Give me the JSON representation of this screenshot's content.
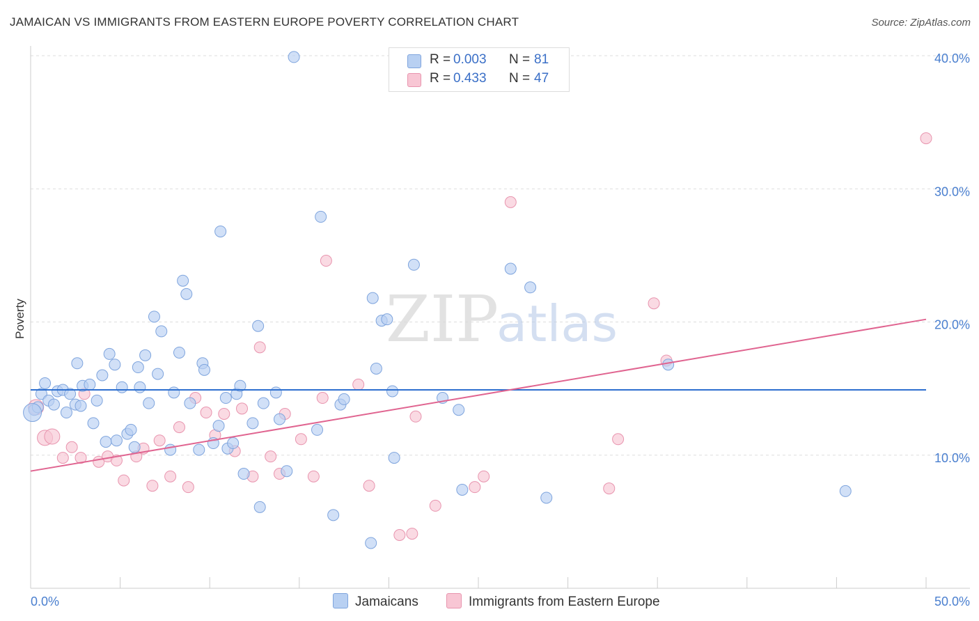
{
  "title": "JAMAICAN VS IMMIGRANTS FROM EASTERN EUROPE POVERTY CORRELATION CHART",
  "source": "Source: ZipAtlas.com",
  "watermark": {
    "zip": "ZIP",
    "atlas": "atlas"
  },
  "colors": {
    "blue_fill": "#b8d0f2",
    "blue_stroke": "#7ea4dd",
    "blue_line": "#2d6fcf",
    "pink_fill": "#f8c6d4",
    "pink_stroke": "#e894ae",
    "pink_line": "#e06490",
    "tick_blue": "#4a7fcf",
    "grid": "#dddddd"
  },
  "legend": {
    "rows": [
      {
        "r_label": "R =",
        "r_value": "0.003",
        "n_label": "N =",
        "n_value": "81"
      },
      {
        "r_label": "R =",
        "r_value": "0.433",
        "n_label": "N =",
        "n_value": "47"
      }
    ]
  },
  "bottom_legend": [
    "Jamaicans",
    "Immigrants from Eastern Europe"
  ],
  "chart_data": {
    "type": "scatter",
    "title": "JAMAICAN VS IMMIGRANTS FROM EASTERN EUROPE POVERTY CORRELATION CHART",
    "ylabel": "Poverty",
    "xlim": [
      0,
      50
    ],
    "ylim": [
      0,
      40
    ],
    "x_tick_labels": [
      "0.0%",
      "50.0%"
    ],
    "y_ticks": [
      10,
      20,
      30,
      40
    ],
    "y_tick_labels": [
      "10.0%",
      "20.0%",
      "30.0%",
      "40.0%"
    ],
    "grid": true,
    "series": [
      {
        "name": "Jamaicans",
        "trend": [
          [
            0,
            14.9
          ],
          [
            50,
            14.9
          ]
        ],
        "points": [
          [
            0.2,
            13.4
          ],
          [
            0.4,
            13.6
          ],
          [
            0.6,
            14.6
          ],
          [
            0.8,
            15.4
          ],
          [
            1.0,
            14.1
          ],
          [
            1.3,
            13.8
          ],
          [
            1.5,
            14.8
          ],
          [
            1.8,
            14.9
          ],
          [
            2.0,
            13.2
          ],
          [
            2.2,
            14.6
          ],
          [
            2.5,
            13.8
          ],
          [
            2.6,
            16.9
          ],
          [
            2.8,
            13.7
          ],
          [
            2.9,
            15.2
          ],
          [
            3.3,
            15.3
          ],
          [
            3.5,
            12.4
          ],
          [
            3.7,
            14.1
          ],
          [
            4.0,
            16.0
          ],
          [
            4.2,
            11.0
          ],
          [
            4.4,
            17.6
          ],
          [
            4.7,
            16.8
          ],
          [
            4.8,
            11.1
          ],
          [
            5.1,
            15.1
          ],
          [
            5.4,
            11.6
          ],
          [
            5.6,
            11.9
          ],
          [
            5.8,
            10.6
          ],
          [
            6.0,
            16.6
          ],
          [
            6.1,
            15.1
          ],
          [
            6.4,
            17.5
          ],
          [
            6.6,
            13.9
          ],
          [
            6.9,
            20.4
          ],
          [
            7.1,
            16.1
          ],
          [
            7.3,
            19.3
          ],
          [
            7.8,
            10.4
          ],
          [
            8.0,
            14.7
          ],
          [
            8.3,
            17.7
          ],
          [
            8.5,
            23.1
          ],
          [
            8.7,
            22.1
          ],
          [
            8.9,
            13.9
          ],
          [
            9.4,
            10.4
          ],
          [
            9.6,
            16.9
          ],
          [
            9.7,
            16.4
          ],
          [
            10.2,
            10.9
          ],
          [
            10.5,
            12.2
          ],
          [
            10.6,
            26.8
          ],
          [
            10.9,
            14.3
          ],
          [
            11.0,
            10.5
          ],
          [
            11.3,
            10.9
          ],
          [
            11.5,
            14.6
          ],
          [
            11.7,
            15.2
          ],
          [
            11.9,
            8.6
          ],
          [
            12.4,
            12.4
          ],
          [
            12.7,
            19.7
          ],
          [
            12.8,
            6.1
          ],
          [
            13.0,
            13.9
          ],
          [
            13.7,
            14.7
          ],
          [
            13.9,
            12.7
          ],
          [
            14.3,
            8.8
          ],
          [
            14.7,
            39.9
          ],
          [
            16.0,
            11.9
          ],
          [
            16.2,
            27.9
          ],
          [
            16.9,
            5.5
          ],
          [
            17.3,
            13.8
          ],
          [
            17.5,
            14.2
          ],
          [
            19.0,
            3.4
          ],
          [
            19.1,
            21.8
          ],
          [
            19.3,
            16.5
          ],
          [
            19.6,
            20.1
          ],
          [
            19.9,
            20.2
          ],
          [
            20.2,
            14.8
          ],
          [
            20.3,
            9.8
          ],
          [
            21.4,
            24.3
          ],
          [
            23.0,
            14.3
          ],
          [
            23.9,
            13.4
          ],
          [
            24.1,
            7.4
          ],
          [
            26.8,
            24.0
          ],
          [
            27.9,
            22.6
          ],
          [
            28.8,
            6.8
          ],
          [
            35.6,
            16.8
          ],
          [
            45.5,
            7.3
          ],
          [
            0.1,
            13.2
          ]
        ]
      },
      {
        "name": "Immigrants from Eastern Europe",
        "trend": [
          [
            0,
            8.8
          ],
          [
            50,
            20.2
          ]
        ],
        "points": [
          [
            0.3,
            13.6
          ],
          [
            0.8,
            11.3
          ],
          [
            1.2,
            11.4
          ],
          [
            1.8,
            9.8
          ],
          [
            2.3,
            10.6
          ],
          [
            2.8,
            9.8
          ],
          [
            3.0,
            14.6
          ],
          [
            3.8,
            9.5
          ],
          [
            4.3,
            9.9
          ],
          [
            4.8,
            9.6
          ],
          [
            5.2,
            8.1
          ],
          [
            5.9,
            9.9
          ],
          [
            6.3,
            10.5
          ],
          [
            6.8,
            7.7
          ],
          [
            7.2,
            11.1
          ],
          [
            7.8,
            8.4
          ],
          [
            8.3,
            12.1
          ],
          [
            8.8,
            7.6
          ],
          [
            9.2,
            14.3
          ],
          [
            9.8,
            13.2
          ],
          [
            10.3,
            11.5
          ],
          [
            10.8,
            13.1
          ],
          [
            11.4,
            10.3
          ],
          [
            11.8,
            13.5
          ],
          [
            12.4,
            8.4
          ],
          [
            12.8,
            18.1
          ],
          [
            13.4,
            9.9
          ],
          [
            13.9,
            8.6
          ],
          [
            14.2,
            13.1
          ],
          [
            15.1,
            11.2
          ],
          [
            15.8,
            8.4
          ],
          [
            16.3,
            14.3
          ],
          [
            16.5,
            24.6
          ],
          [
            18.3,
            15.3
          ],
          [
            18.9,
            7.7
          ],
          [
            20.6,
            4.0
          ],
          [
            21.3,
            4.1
          ],
          [
            21.5,
            12.9
          ],
          [
            22.6,
            6.2
          ],
          [
            24.8,
            7.6
          ],
          [
            25.3,
            8.4
          ],
          [
            26.8,
            29.0
          ],
          [
            32.3,
            7.5
          ],
          [
            32.8,
            11.2
          ],
          [
            34.8,
            21.4
          ],
          [
            35.5,
            17.1
          ],
          [
            50.0,
            33.8
          ]
        ]
      }
    ]
  }
}
